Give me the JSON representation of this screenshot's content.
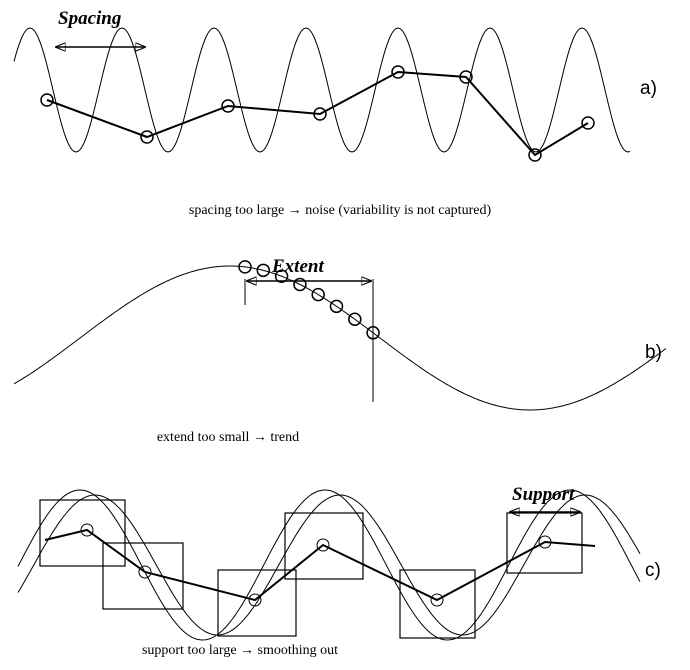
{
  "panels": [
    {
      "label": "Spacing",
      "tag": "a)",
      "caption": "spacing too large → noise (variability is not captured)"
    },
    {
      "label": "Extent",
      "tag": "b)",
      "caption": "extend too small → trend"
    },
    {
      "label": "Support",
      "tag": "c)",
      "caption": "support too large → smoothing out"
    }
  ]
}
